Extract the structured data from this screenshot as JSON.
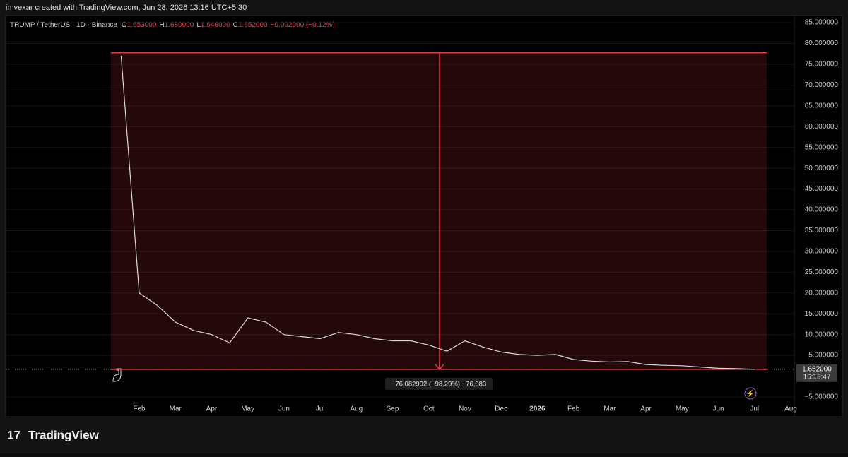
{
  "header": "imvexar created with TradingView.com, Jun 28, 2026 13:16 UTC+5:30",
  "footer_logo": "TradingView",
  "chart_data": {
    "type": "line",
    "legend": {
      "symbol": "TRUMP / TetherUS · 1D · Binance",
      "ohlc": [
        {
          "key": "O",
          "value": "1.653000"
        },
        {
          "key": "H",
          "value": "1.680000"
        },
        {
          "key": "L",
          "value": "1.646000"
        },
        {
          "key": "C",
          "value": "1.652000"
        }
      ],
      "change": "−0.002000 (−0.12%)"
    },
    "categories": [
      null,
      "Feb",
      null,
      "Mar",
      null,
      "Apr",
      null,
      "May",
      null,
      "Jun",
      null,
      "Jul",
      null,
      "Aug",
      null,
      "Sep",
      null,
      "Oct",
      null,
      "Nov",
      null,
      "Dec",
      null,
      "2026",
      null,
      "Feb",
      null,
      "Mar",
      null,
      "Apr",
      null,
      "May",
      null,
      "Jun",
      null,
      "Jul",
      null,
      "Aug"
    ],
    "series": [
      {
        "name": "TRUMP / TetherUS",
        "color": "#d9d9d9",
        "values": [
          77,
          20,
          17,
          13,
          11,
          10,
          8,
          14,
          13,
          10,
          9.5,
          9,
          10.5,
          10,
          9,
          8.5,
          8.5,
          7.5,
          6,
          8.5,
          7,
          5.8,
          5.2,
          5,
          5.2,
          4,
          3.6,
          3.4,
          3.5,
          2.8,
          2.6,
          2.5,
          2.2,
          1.9,
          1.8,
          1.652,
          null,
          null
        ]
      }
    ],
    "ylim": [
      -6.36,
      86.36
    ],
    "yticks": [
      {
        "value": 85,
        "label": "85.000000"
      },
      {
        "value": 80,
        "label": "80.000000"
      },
      {
        "value": 75,
        "label": "75.000000"
      },
      {
        "value": 70,
        "label": "70.000000"
      },
      {
        "value": 65,
        "label": "65.000000"
      },
      {
        "value": 60,
        "label": "60.000000"
      },
      {
        "value": 55,
        "label": "55.000000"
      },
      {
        "value": 50,
        "label": "50.000000"
      },
      {
        "value": 45,
        "label": "45.000000"
      },
      {
        "value": 40,
        "label": "40.000000"
      },
      {
        "value": 35,
        "label": "35.000000"
      },
      {
        "value": 30,
        "label": "30.000000"
      },
      {
        "value": 25,
        "label": "25.000000"
      },
      {
        "value": 20,
        "label": "20.000000"
      },
      {
        "value": 15,
        "label": "15.000000"
      },
      {
        "value": 10,
        "label": "10.000000"
      },
      {
        "value": 5,
        "label": "5.000000"
      },
      {
        "value": -5,
        "label": "−5.000000"
      }
    ],
    "grid": true,
    "last_price": {
      "value": 1.652,
      "label": "1.652000",
      "countdown": "16:13:47"
    },
    "measure": {
      "high": 77.734992,
      "low": 1.652,
      "label": "−76.082992 (−98.29%) −76,083",
      "color": "#f23645"
    }
  }
}
